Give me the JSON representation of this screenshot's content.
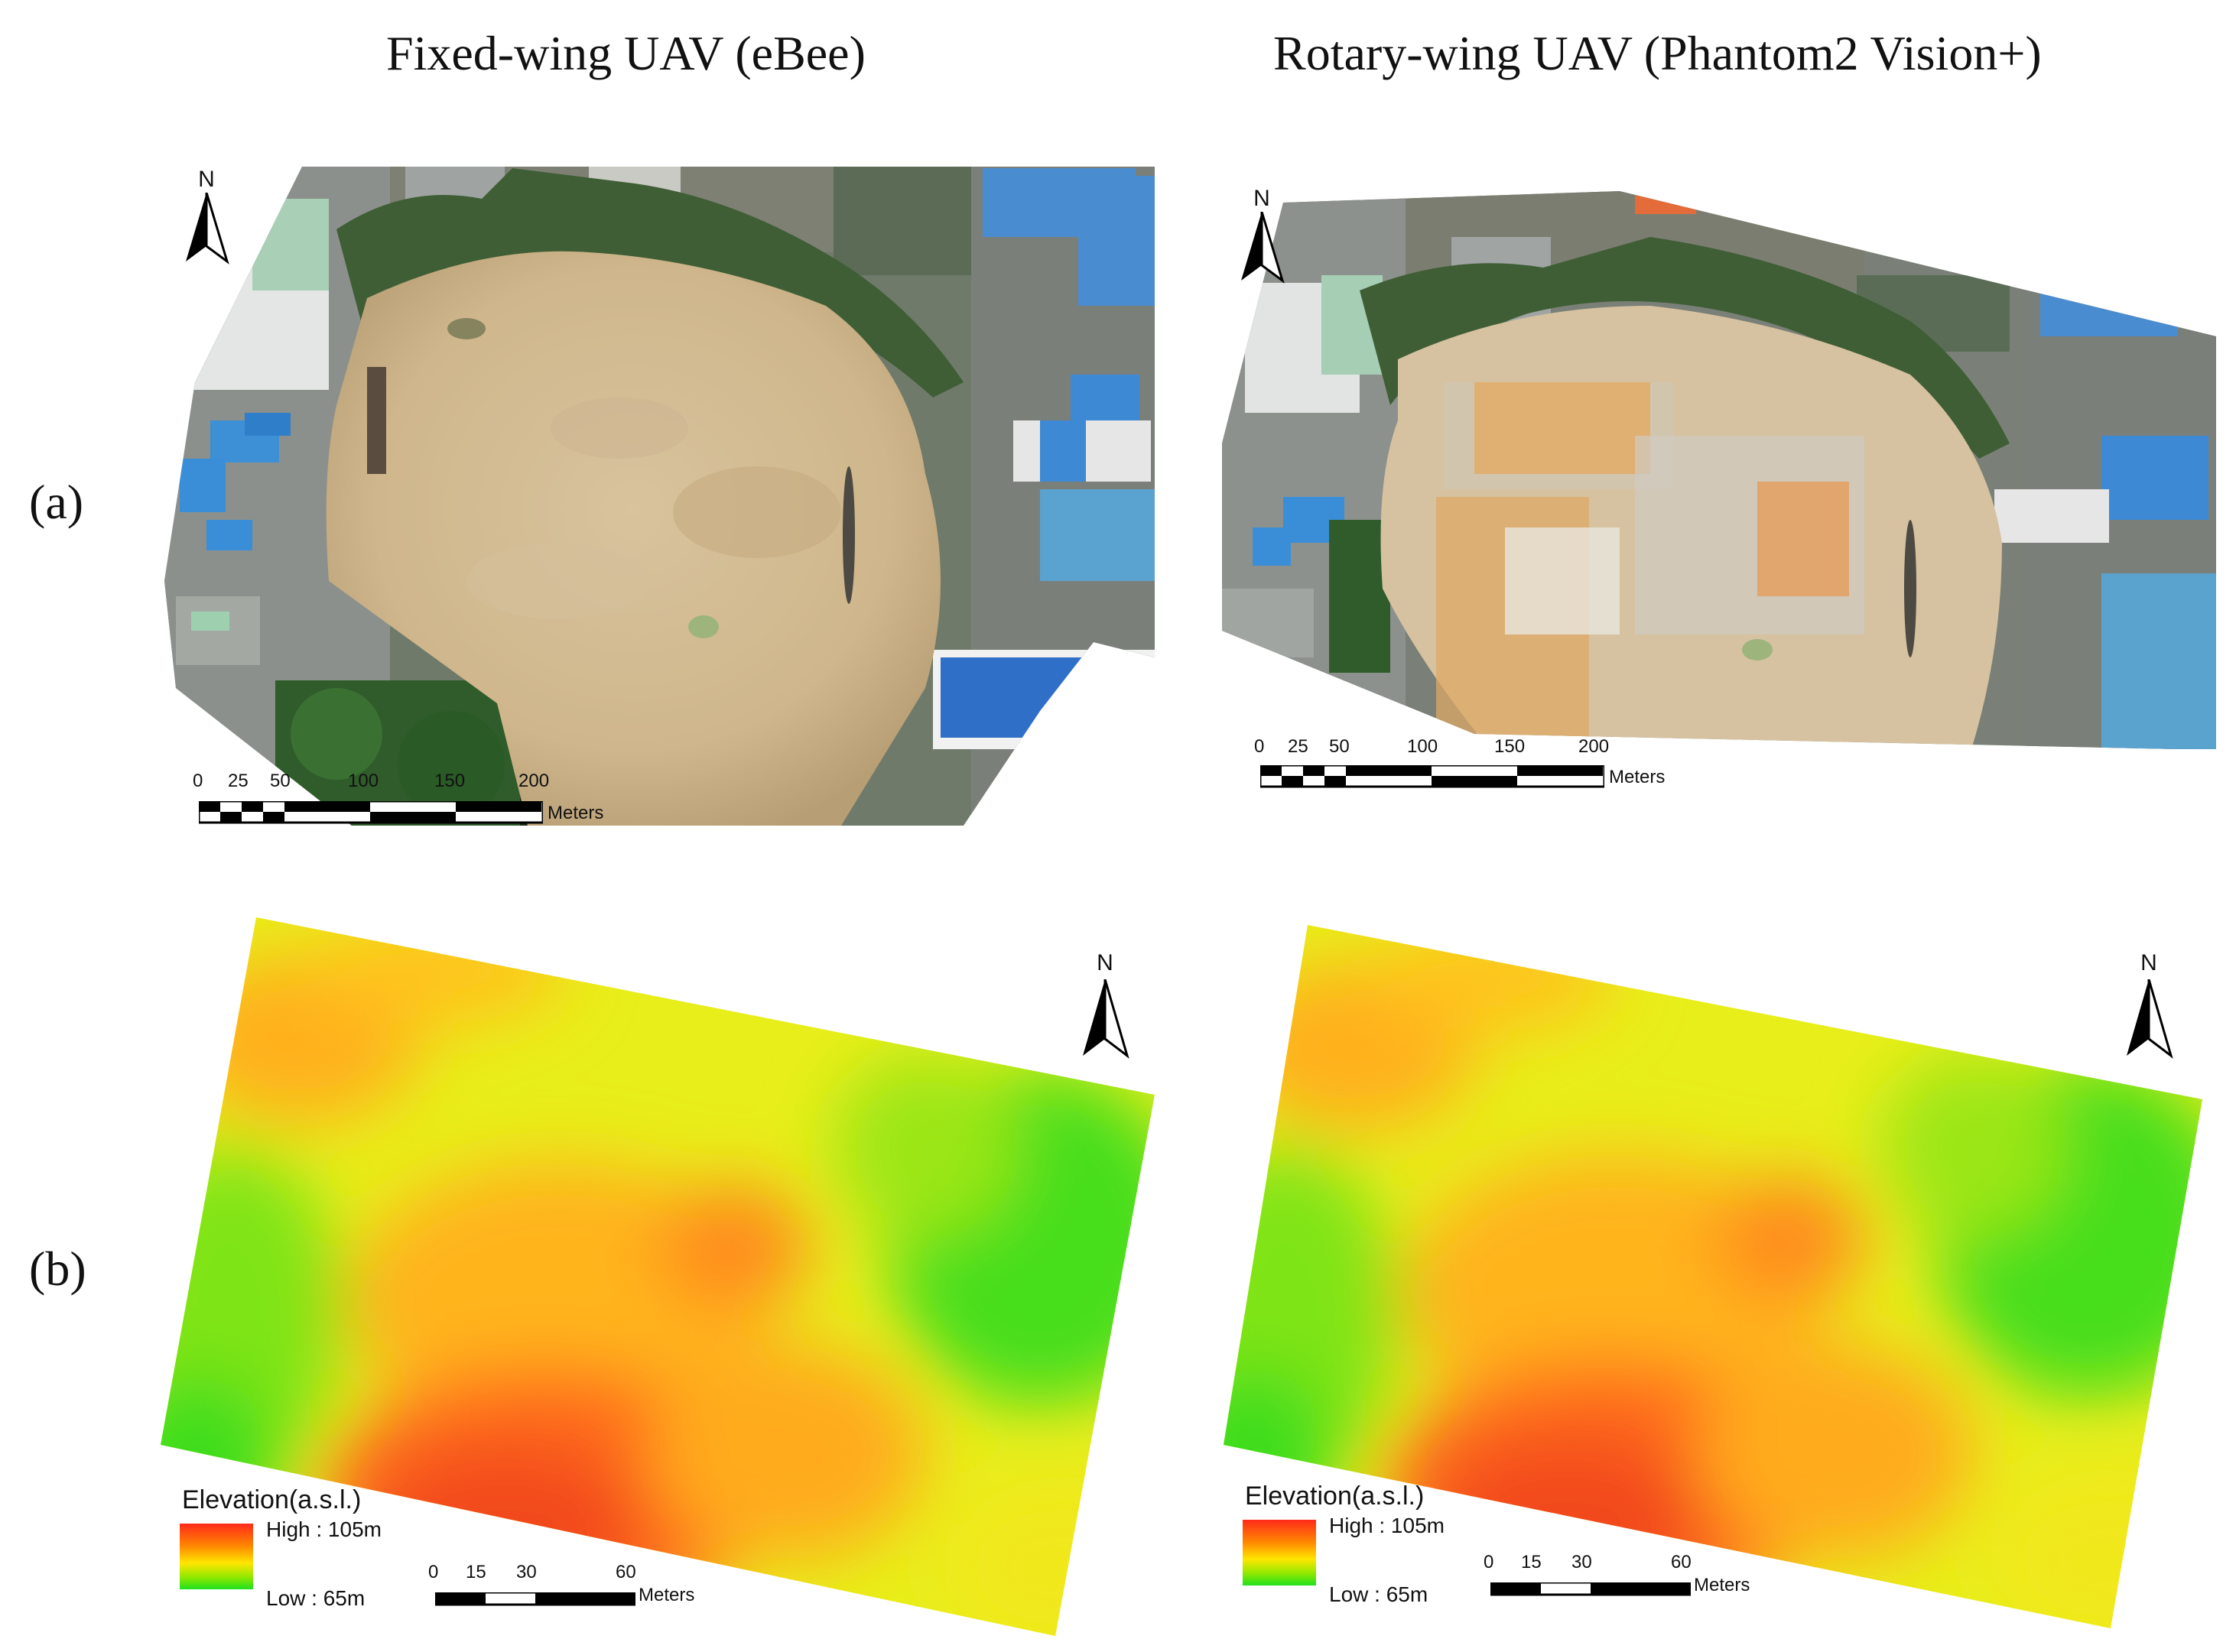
{
  "columns": [
    {
      "title": "Fixed-wing UAV (eBee)"
    },
    {
      "title": "Rotary-wing UAV (Phantom2 Vision+)"
    }
  ],
  "rows": [
    {
      "label": "(a)"
    },
    {
      "label": "(b)"
    }
  ],
  "north_arrow": {
    "letter": "N"
  },
  "orthomosaic_scale": {
    "ticks": [
      "0",
      "25",
      "50",
      "100",
      "150",
      "200"
    ],
    "unit": "Meters"
  },
  "dem_scale": {
    "ticks": [
      "0",
      "15",
      "30",
      "60"
    ],
    "unit": "Meters"
  },
  "elevation_legend": {
    "title": "Elevation(a.s.l.)",
    "high": "High : 105m",
    "low": "Low : 65m",
    "colors": {
      "high": "#ff2a1a",
      "mid": "#ffe600",
      "low": "#20e020"
    }
  }
}
